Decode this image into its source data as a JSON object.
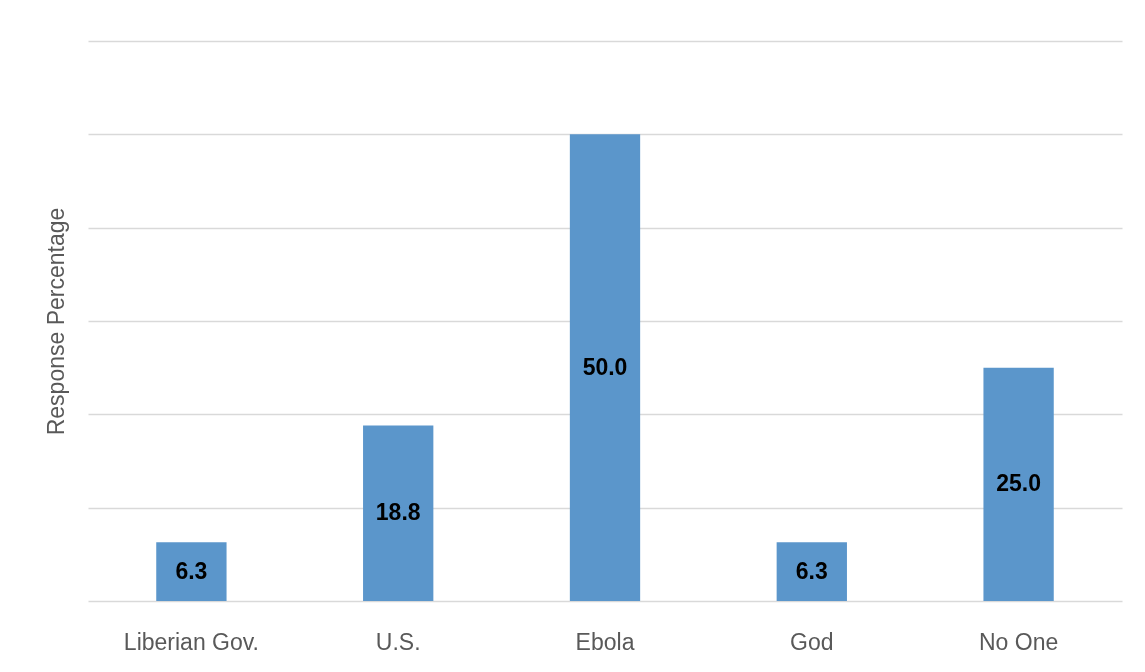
{
  "chart_data": {
    "type": "bar",
    "ylabel": "Response Percentage",
    "categories": [
      "Liberian Gov.",
      "U.S.",
      "Ebola",
      "God",
      "No One"
    ],
    "values": [
      6.3,
      18.8,
      50,
      6.3,
      25
    ],
    "value_labels": [
      "6.3",
      "18.8",
      "50.0",
      "6.3",
      "25.0"
    ],
    "color": "#5b96cb",
    "ylim": [
      0,
      60
    ],
    "yticks": [
      {
        "value": 0,
        "label": null
      },
      {
        "value": 10,
        "label": null
      },
      {
        "value": 20,
        "label": null
      },
      {
        "value": 30,
        "label": null
      },
      {
        "value": 40,
        "label": null
      },
      {
        "value": 50,
        "label": null
      },
      {
        "value": 60,
        "label": null
      }
    ],
    "grid": "y",
    "tick_labels": "x"
  }
}
